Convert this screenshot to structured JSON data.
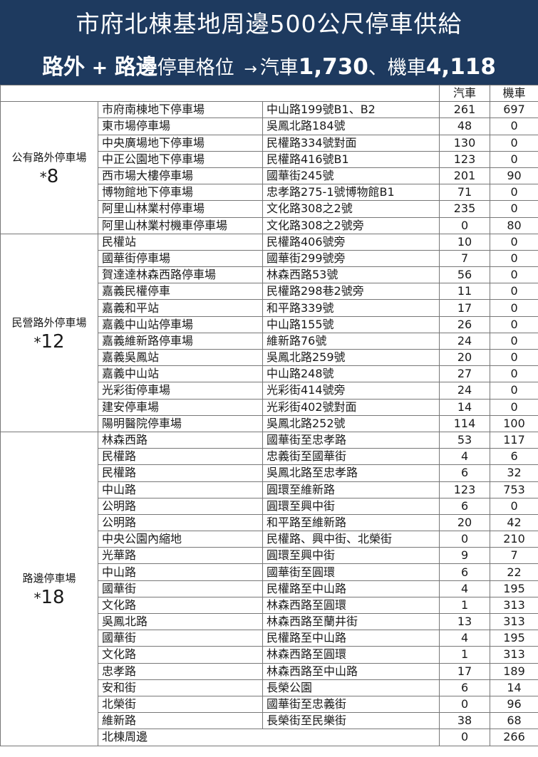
{
  "title": "市府北棟基地周邊500公尺停車供給",
  "subtitle": {
    "offstreet": "路外",
    "plus": "+",
    "onstreet": "路邊",
    "spaces": "停車格位",
    "arrow": "→",
    "car_label": "汽車",
    "car_total": "1,730",
    "sep": "、",
    "moto_label": "機車",
    "moto_total": "4,118"
  },
  "columns": {
    "car": "汽車",
    "moto": "機車"
  },
  "groups": [
    {
      "name": "公有路外停車場",
      "count_star": "*",
      "count": "8",
      "rows": [
        {
          "name": "市府南棟地下停車場",
          "location": "中山路199號B1、B2",
          "car": "261",
          "moto": "697"
        },
        {
          "name": "東市場停車場",
          "location": "吳鳳北路184號",
          "car": "48",
          "moto": "0"
        },
        {
          "name": "中央廣場地下停車場",
          "location": "民權路334號對面",
          "car": "130",
          "moto": "0"
        },
        {
          "name": "中正公園地下停車場",
          "location": "民權路416號B1",
          "car": "123",
          "moto": "0"
        },
        {
          "name": "西市場大樓停車場",
          "location": "國華街245號",
          "car": "201",
          "moto": "90"
        },
        {
          "name": "博物館地下停車場",
          "location": "忠孝路275-1號博物館B1",
          "car": "71",
          "moto": "0"
        },
        {
          "name": "阿里山林業村停車場",
          "location": "文化路308之2號",
          "car": "235",
          "moto": "0"
        },
        {
          "name": "阿里山林業村機車停車場",
          "location": "文化路308之2號旁",
          "car": "0",
          "moto": "80"
        }
      ]
    },
    {
      "name": "民營路外停車場",
      "count_star": "*",
      "count": "12",
      "rows": [
        {
          "name": "民權站",
          "location": "民權路406號旁",
          "car": "10",
          "moto": "0"
        },
        {
          "name": "國華街停車場",
          "location": "國華街299號旁",
          "car": "7",
          "moto": "0"
        },
        {
          "name": "賀達達林森西路停車場",
          "location": "林森西路53號",
          "car": "56",
          "moto": "0"
        },
        {
          "name": "嘉義民權停車",
          "location": "民權路298巷2號旁",
          "car": "11",
          "moto": "0"
        },
        {
          "name": "嘉義和平站",
          "location": "和平路339號",
          "car": "17",
          "moto": "0"
        },
        {
          "name": "嘉義中山站停車場",
          "location": "中山路155號",
          "car": "26",
          "moto": "0"
        },
        {
          "name": "嘉義維新路停車場",
          "location": "維新路76號",
          "car": "24",
          "moto": "0"
        },
        {
          "name": "嘉義吳鳳站",
          "location": "吳鳳北路259號",
          "car": "20",
          "moto": "0"
        },
        {
          "name": "嘉義中山站",
          "location": "中山路248號",
          "car": "27",
          "moto": "0"
        },
        {
          "name": "光彩街停車場",
          "location": "光彩街414號旁",
          "car": "24",
          "moto": "0"
        },
        {
          "name": "建安停車場",
          "location": "光彩街402號對面",
          "car": "14",
          "moto": "0"
        },
        {
          "name": "陽明醫院停車場",
          "location": "吳鳳北路252號",
          "car": "114",
          "moto": "100"
        }
      ]
    },
    {
      "name": "路邊停車場",
      "count_star": "*",
      "count": "18",
      "rows": [
        {
          "name": "林森西路",
          "location": "國華街至忠孝路",
          "car": "53",
          "moto": "117"
        },
        {
          "name": "民權路",
          "location": "忠義街至國華街",
          "car": "4",
          "moto": "6"
        },
        {
          "name": "民權路",
          "location": "吳鳳北路至忠孝路",
          "car": "6",
          "moto": "32"
        },
        {
          "name": "中山路",
          "location": "圓環至維新路",
          "car": "123",
          "moto": "753"
        },
        {
          "name": "公明路",
          "location": "圓環至興中街",
          "car": "6",
          "moto": "0"
        },
        {
          "name": "公明路",
          "location": "和平路至維新路",
          "car": "20",
          "moto": "42"
        },
        {
          "name": "中央公園內縮地",
          "location": "民權路、興中街、北榮街",
          "car": "0",
          "moto": "210"
        },
        {
          "name": "光華路",
          "location": "圓環至興中街",
          "car": "9",
          "moto": "7"
        },
        {
          "name": "中山路",
          "location": "國華街至圓環",
          "car": "6",
          "moto": "22"
        },
        {
          "name": "國華街",
          "location": "民權路至中山路",
          "car": "4",
          "moto": "195"
        },
        {
          "name": "文化路",
          "location": "林森西路至圓環",
          "car": "1",
          "moto": "313"
        },
        {
          "name": "吳鳳北路",
          "location": "林森西路至蘭井街",
          "car": "13",
          "moto": "313"
        },
        {
          "name": "國華街",
          "location": "民權路至中山路",
          "car": "4",
          "moto": "195"
        },
        {
          "name": "文化路",
          "location": "林森西路至圓環",
          "car": "1",
          "moto": "313"
        },
        {
          "name": "忠孝路",
          "location": "林森西路至中山路",
          "car": "17",
          "moto": "189"
        },
        {
          "name": "安和街",
          "location": "長榮公園",
          "car": "6",
          "moto": "14"
        },
        {
          "name": "北榮街",
          "location": "國華街至忠義街",
          "car": "0",
          "moto": "96"
        },
        {
          "name": "維新路",
          "location": "長榮街至民樂街",
          "car": "38",
          "moto": "68"
        },
        {
          "name": "北棟周邊",
          "location": "",
          "car": "0",
          "moto": "266",
          "merged": true
        }
      ]
    }
  ],
  "colors": {
    "header_bg": "#1e3a5f",
    "header_text": "#ffffff",
    "border": "#777777"
  }
}
